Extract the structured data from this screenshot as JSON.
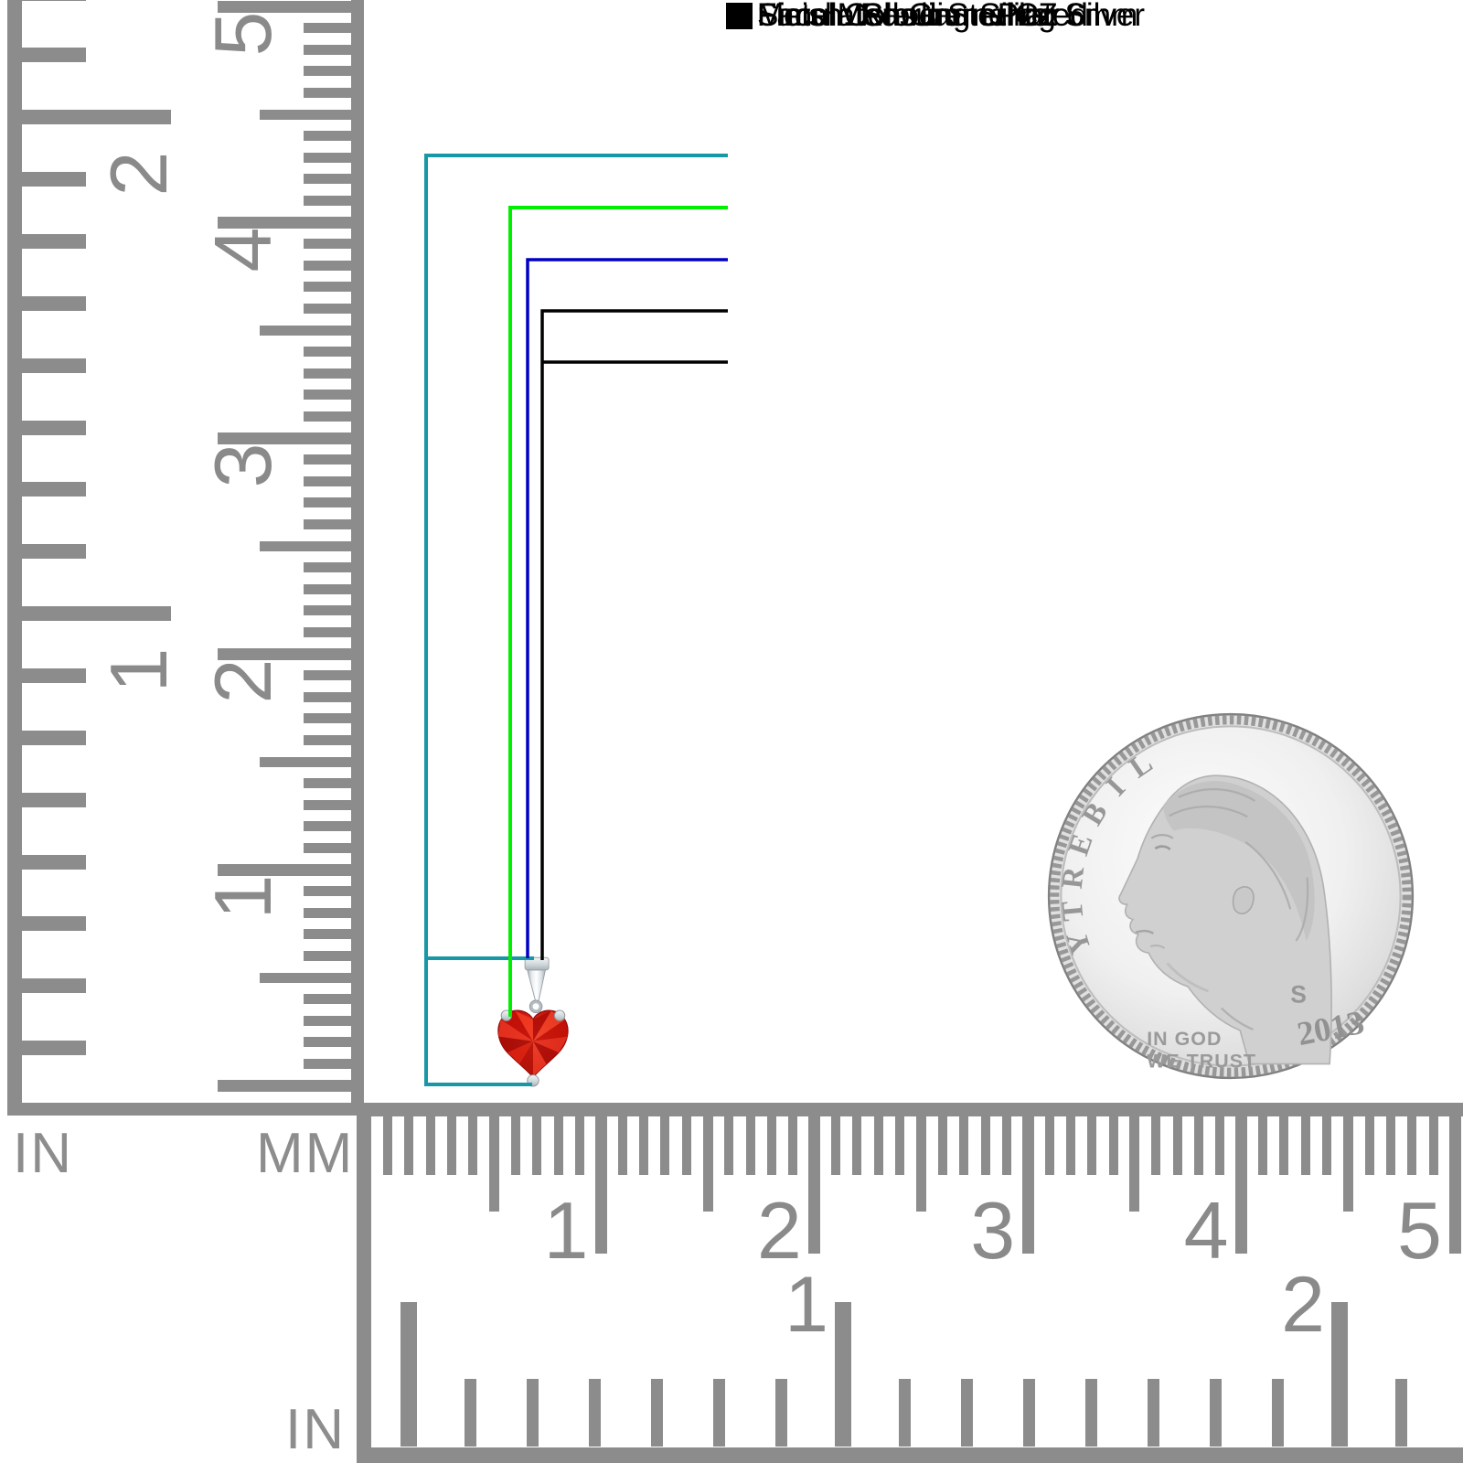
{
  "callouts": {
    "items": [
      {
        "label": "Face Measurements: 6mm",
        "color": "#1898a6"
      },
      {
        "label": "Simulated Garnet CZ",
        "color": "#00ee00"
      },
      {
        "label": "Finish: Rhodium Plated",
        "color": "#0000c4"
      },
      {
        "label": "Metal : Sterling Silver",
        "color": "#000000"
      },
      {
        "label": "Metal Color : Sterling Silver",
        "color": "#000000"
      }
    ]
  },
  "rulers": {
    "left_inch": {
      "unit": "IN",
      "numbers": [
        "1",
        "2"
      ]
    },
    "left_mm": {
      "unit": "MM",
      "numbers": [
        "1",
        "2",
        "3",
        "4",
        "5"
      ]
    },
    "bottom_mm": {
      "numbers": [
        "1",
        "2",
        "3",
        "4",
        "5"
      ]
    },
    "bottom_inch": {
      "unit": "IN",
      "numbers": [
        "1",
        "2"
      ]
    }
  },
  "coin": {
    "liberty": "LIBERTY",
    "motto_line1": "IN GOD",
    "motto_line2": "WE TRUST",
    "mint_mark": "S",
    "year": "2013"
  },
  "colors": {
    "ruler_gray": "#8c8c8c",
    "number_gray": "#8a8a8a",
    "stone_red": "#d81710",
    "metal_silver": "#c9ced3"
  }
}
